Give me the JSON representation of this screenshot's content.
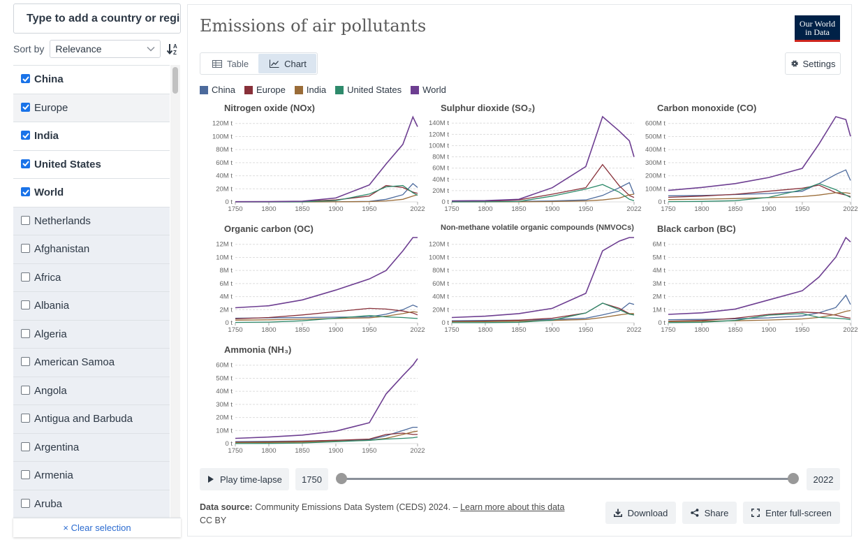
{
  "sidebar": {
    "search_placeholder": "Type to add a country or region...",
    "sort_label": "Sort by",
    "sort_value": "Relevance",
    "clear_label": "× Clear selection",
    "entities": [
      {
        "name": "China",
        "selected": true
      },
      {
        "name": "Europe",
        "selected": true
      },
      {
        "name": "India",
        "selected": true
      },
      {
        "name": "United States",
        "selected": true
      },
      {
        "name": "World",
        "selected": true
      },
      {
        "name": "Netherlands",
        "selected": false
      },
      {
        "name": "Afghanistan",
        "selected": false
      },
      {
        "name": "Africa",
        "selected": false
      },
      {
        "name": "Albania",
        "selected": false
      },
      {
        "name": "Algeria",
        "selected": false
      },
      {
        "name": "American Samoa",
        "selected": false
      },
      {
        "name": "Angola",
        "selected": false
      },
      {
        "name": "Antigua and Barbuda",
        "selected": false
      },
      {
        "name": "Argentina",
        "selected": false
      },
      {
        "name": "Armenia",
        "selected": false
      },
      {
        "name": "Aruba",
        "selected": false
      }
    ]
  },
  "header": {
    "title": "Emissions of air pollutants",
    "logo_line1": "Our World",
    "logo_line2": "in Data",
    "tab_table": "Table",
    "tab_chart": "Chart",
    "settings_label": "Settings"
  },
  "legend": [
    {
      "name": "China",
      "color": "#4c6a9c"
    },
    {
      "name": "Europe",
      "color": "#883039"
    },
    {
      "name": "India",
      "color": "#9a6c38"
    },
    {
      "name": "United States",
      "color": "#2e8a6b"
    },
    {
      "name": "World",
      "color": "#6d3e91"
    }
  ],
  "chart_data": [
    {
      "type": "line",
      "title": "Nitrogen oxide (NOx)",
      "x": [
        1750,
        1800,
        1850,
        1900,
        1950,
        1975,
        2000,
        2015,
        2022
      ],
      "xticks": [
        "1750",
        "1800",
        "1850",
        "1900",
        "1950",
        "2022"
      ],
      "yticks": [
        "0 t",
        "20M t",
        "40M t",
        "60M t",
        "80M t",
        "100M t",
        "120M t"
      ],
      "ylim": [
        0,
        140000000
      ],
      "series": [
        {
          "name": "China",
          "values": [
            0,
            0,
            0,
            200000,
            800000,
            4000000,
            11000000,
            28000000,
            22000000
          ]
        },
        {
          "name": "Europe",
          "values": [
            200000,
            300000,
            700000,
            3000000,
            9000000,
            25000000,
            22000000,
            15000000,
            13000000
          ]
        },
        {
          "name": "India",
          "values": [
            0,
            0,
            0,
            100000,
            500000,
            1500000,
            4000000,
            9000000,
            11000000
          ]
        },
        {
          "name": "United States",
          "values": [
            0,
            0,
            100000,
            2000000,
            12000000,
            23000000,
            25000000,
            14000000,
            10000000
          ]
        },
        {
          "name": "World",
          "values": [
            300000,
            400000,
            1000000,
            6000000,
            26000000,
            58000000,
            88000000,
            130000000,
            115000000
          ]
        }
      ]
    },
    {
      "type": "line",
      "title": "Sulphur dioxide (SO₂)",
      "x": [
        1750,
        1800,
        1850,
        1900,
        1950,
        1975,
        2000,
        2015,
        2022
      ],
      "xticks": [
        "1750",
        "1800",
        "1850",
        "1900",
        "1950",
        "2022"
      ],
      "yticks": [
        "0 t",
        "20M t",
        "40M t",
        "60M t",
        "80M t",
        "100M t",
        "120M t",
        "140M t"
      ],
      "ylim": [
        0,
        140000000
      ],
      "series": [
        {
          "name": "China",
          "values": [
            300000,
            400000,
            600000,
            1500000,
            3000000,
            10000000,
            22000000,
            30000000,
            12000000
          ]
        },
        {
          "name": "Europe",
          "values": [
            500000,
            900000,
            3000000,
            12000000,
            22000000,
            58000000,
            25000000,
            10000000,
            7000000
          ]
        },
        {
          "name": "India",
          "values": [
            0,
            0,
            100000,
            500000,
            1500000,
            3000000,
            6000000,
            11000000,
            12000000
          ]
        },
        {
          "name": "United States",
          "values": [
            0,
            100000,
            700000,
            9000000,
            20000000,
            27000000,
            15000000,
            4000000,
            2000000
          ]
        },
        {
          "name": "World",
          "values": [
            1500000,
            2000000,
            4000000,
            22000000,
            55000000,
            135000000,
            110000000,
            95000000,
            70000000
          ]
        }
      ]
    },
    {
      "type": "line",
      "title": "Carbon monoxide (CO)",
      "x": [
        1750,
        1800,
        1850,
        1900,
        1950,
        1975,
        2000,
        2015,
        2022
      ],
      "xticks": [
        "1750",
        "1800",
        "1850",
        "1900",
        "1950",
        "2022"
      ],
      "yticks": [
        "0 t",
        "100M t",
        "200M t",
        "300M t",
        "400M t",
        "500M t",
        "600M t"
      ],
      "ylim": [
        0,
        600000000
      ],
      "series": [
        {
          "name": "China",
          "values": [
            40000000,
            42000000,
            48000000,
            55000000,
            70000000,
            120000000,
            180000000,
            210000000,
            140000000
          ]
        },
        {
          "name": "Europe",
          "values": [
            30000000,
            38000000,
            50000000,
            70000000,
            90000000,
            110000000,
            60000000,
            45000000,
            35000000
          ]
        },
        {
          "name": "India",
          "values": [
            15000000,
            18000000,
            22000000,
            28000000,
            35000000,
            45000000,
            60000000,
            60000000,
            55000000
          ]
        },
        {
          "name": "United States",
          "values": [
            2000000,
            3000000,
            8000000,
            30000000,
            80000000,
            120000000,
            80000000,
            45000000,
            30000000
          ]
        },
        {
          "name": "World",
          "values": [
            75000000,
            95000000,
            120000000,
            160000000,
            220000000,
            380000000,
            600000000,
            540000000,
            430000000
          ]
        }
      ]
    },
    {
      "type": "line",
      "title": "Organic carbon (OC)",
      "x": [
        1750,
        1800,
        1850,
        1900,
        1950,
        1975,
        2000,
        2015,
        2022
      ],
      "xticks": [
        "1750",
        "1800",
        "1850",
        "1900",
        "1950",
        "2022"
      ],
      "yticks": [
        "0 t",
        "2M t",
        "4M t",
        "6M t",
        "8M t",
        "10M t",
        "12M t"
      ],
      "ylim": [
        0,
        14000000
      ],
      "series": [
        {
          "name": "China",
          "values": [
            700000,
            750000,
            800000,
            850000,
            900000,
            1300000,
            2000000,
            2700000,
            2400000
          ]
        },
        {
          "name": "Europe",
          "values": [
            600000,
            800000,
            1200000,
            1700000,
            2200000,
            2100000,
            1800000,
            1500000,
            1200000
          ]
        },
        {
          "name": "India",
          "values": [
            400000,
            450000,
            550000,
            650000,
            750000,
            1000000,
            1400000,
            1700000,
            1600000
          ]
        },
        {
          "name": "United States",
          "values": [
            50000,
            100000,
            300000,
            700000,
            1100000,
            900000,
            800000,
            700000,
            650000
          ]
        },
        {
          "name": "World",
          "values": [
            2300000,
            2600000,
            3500000,
            5000000,
            6700000,
            8000000,
            11000000,
            13500000,
            13300000
          ]
        }
      ]
    },
    {
      "type": "line",
      "title": "Non-methane volatile organic compounds (NMVOCs)",
      "x": [
        1750,
        1800,
        1850,
        1900,
        1950,
        1975,
        2000,
        2015,
        2022
      ],
      "xticks": [
        "1750",
        "1800",
        "1850",
        "1900",
        "1950",
        "2022"
      ],
      "yticks": [
        "0 t",
        "20M t",
        "40M t",
        "60M t",
        "80M t",
        "100M t",
        "120M t"
      ],
      "ylim": [
        0,
        140000000
      ],
      "series": [
        {
          "name": "China",
          "values": [
            3000000,
            3500000,
            4000000,
            5000000,
            7000000,
            12000000,
            18000000,
            30000000,
            28000000
          ]
        },
        {
          "name": "Europe",
          "values": [
            2000000,
            2500000,
            4000000,
            7000000,
            15000000,
            30000000,
            22000000,
            14000000,
            12000000
          ]
        },
        {
          "name": "India",
          "values": [
            1500000,
            1800000,
            2500000,
            3500000,
            5000000,
            8000000,
            12000000,
            14000000,
            14000000
          ]
        },
        {
          "name": "United States",
          "values": [
            100000,
            200000,
            800000,
            4000000,
            15000000,
            30000000,
            20000000,
            13000000,
            12000000
          ]
        },
        {
          "name": "World",
          "values": [
            8000000,
            10000000,
            14000000,
            22000000,
            45000000,
            110000000,
            125000000,
            132000000,
            135000000
          ]
        }
      ]
    },
    {
      "type": "line",
      "title": "Black carbon (BC)",
      "x": [
        1750,
        1800,
        1850,
        1900,
        1950,
        1975,
        2000,
        2015,
        2022
      ],
      "xticks": [
        "1750",
        "1800",
        "1850",
        "1900",
        "1950",
        "2022"
      ],
      "yticks": [
        "0 t",
        "1M t",
        "2M t",
        "3M t",
        "4M t",
        "5M t",
        "6M t"
      ],
      "ylim": [
        0,
        6000000
      ],
      "series": [
        {
          "name": "China",
          "values": [
            200000,
            220000,
            260000,
            320000,
            450000,
            650000,
            1000000,
            1800000,
            1200000
          ]
        },
        {
          "name": "Europe",
          "values": [
            100000,
            150000,
            300000,
            550000,
            700000,
            650000,
            500000,
            350000,
            300000
          ]
        },
        {
          "name": "India",
          "values": [
            80000,
            100000,
            130000,
            180000,
            250000,
            350000,
            550000,
            750000,
            800000
          ]
        },
        {
          "name": "United States",
          "values": [
            10000,
            30000,
            150000,
            500000,
            600000,
            350000,
            300000,
            250000,
            200000
          ]
        },
        {
          "name": "World",
          "values": [
            550000,
            650000,
            900000,
            1500000,
            2100000,
            3000000,
            4300000,
            6000000,
            5300000
          ]
        }
      ]
    },
    {
      "type": "line",
      "title": "Ammonia (NH₃)",
      "x": [
        1750,
        1800,
        1850,
        1900,
        1950,
        1975,
        2000,
        2015,
        2022
      ],
      "xticks": [
        "1750",
        "1800",
        "1850",
        "1900",
        "1950",
        "2022"
      ],
      "yticks": [
        "0 t",
        "10M t",
        "20M t",
        "30M t",
        "40M t",
        "50M t",
        "60M t"
      ],
      "ylim": [
        0,
        70000000
      ],
      "series": [
        {
          "name": "China",
          "values": [
            1500000,
            1700000,
            2000000,
            2500000,
            3000000,
            6000000,
            10000000,
            12500000,
            12500000
          ]
        },
        {
          "name": "Europe",
          "values": [
            1000000,
            1300000,
            1800000,
            2500000,
            3500000,
            7000000,
            8000000,
            7000000,
            7000000
          ]
        },
        {
          "name": "India",
          "values": [
            700000,
            900000,
            1200000,
            1800000,
            2500000,
            4000000,
            7000000,
            9000000,
            9500000
          ]
        },
        {
          "name": "United States",
          "values": [
            50000,
            150000,
            500000,
            1500000,
            2500000,
            3500000,
            4000000,
            4500000,
            5000000
          ]
        },
        {
          "name": "World",
          "values": [
            4000000,
            5000000,
            6500000,
            9500000,
            16000000,
            38000000,
            52000000,
            60000000,
            65000000
          ]
        }
      ]
    }
  ],
  "timeline": {
    "play_label": "Play time-lapse",
    "start_year": "1750",
    "end_year": "2022"
  },
  "footer": {
    "source_label": "Data source:",
    "source_text": "Community Emissions Data System (CEDS) 2024. –",
    "learn_more": "Learn more about this data",
    "license": "CC BY",
    "download_label": "Download",
    "share_label": "Share",
    "fullscreen_label": "Enter full-screen"
  }
}
